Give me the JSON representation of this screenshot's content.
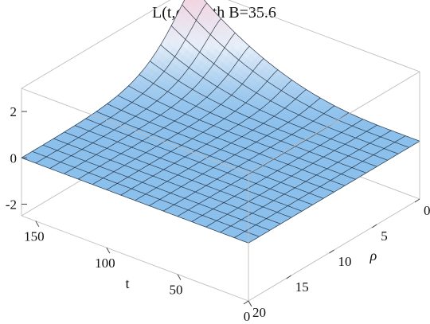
{
  "chart_data": {
    "type": "surface",
    "title_parts": [
      "L(t,",
      "ρ",
      "), with B=35.6"
    ],
    "function": "L(t,ρ)",
    "parameters": {
      "B": 35.6
    },
    "xlabel": "t",
    "ylabel": "ρ",
    "zlabel": "",
    "xlim": [
      0,
      160
    ],
    "ylim": [
      0,
      20
    ],
    "zlim": [
      -2.5,
      3
    ],
    "x_ticks": [
      {
        "v": 150,
        "label": "150"
      },
      {
        "v": 100,
        "label": "100"
      },
      {
        "v": 50,
        "label": "50"
      },
      {
        "v": 0,
        "label": "0"
      }
    ],
    "y_ticks": [
      {
        "v": 0,
        "label": "0"
      },
      {
        "v": 5,
        "label": "5"
      },
      {
        "v": 10,
        "label": "10"
      },
      {
        "v": 15,
        "label": "15"
      },
      {
        "v": 20,
        "label": "20"
      }
    ],
    "z_ticks": [
      {
        "v": 2,
        "label": "2"
      },
      {
        "v": 0,
        "label": "0"
      },
      {
        "v": -2,
        "label": "-2"
      }
    ],
    "mesh": {
      "x_lines": 16,
      "y_lines": 16
    },
    "surface": {
      "description_values": "surface ≈ 0 (flat plane) except a ridge along ρ≈0 for large t",
      "ridge_peak_value": 3.0,
      "ridge_location": {
        "rho": 0,
        "t": 160
      },
      "baseline_value": 0
    },
    "colors": {
      "low": "#8cc0ec",
      "mid": "#e8f0fa",
      "high": "#f6d0dc",
      "mesh": "#1e2a3a",
      "box": "#bdbdbd"
    }
  }
}
